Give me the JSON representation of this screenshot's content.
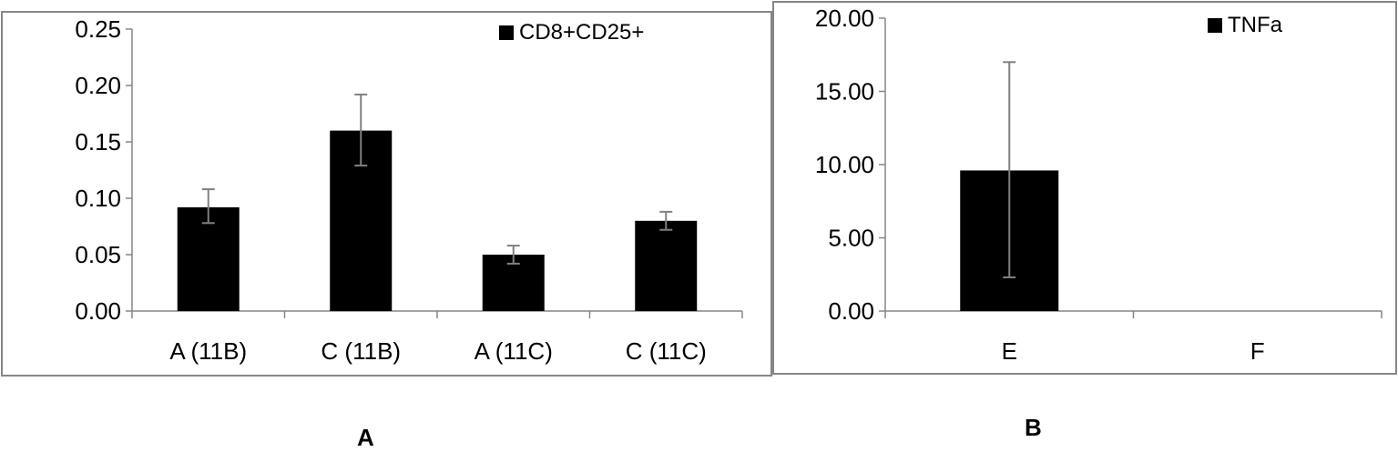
{
  "chart_data": [
    {
      "type": "bar",
      "panel_label": "A",
      "categories": [
        "A (11B)",
        "C (11B)",
        "A (11C)",
        "C (11C)"
      ],
      "series": [
        {
          "name": "CD8+CD25+",
          "values": [
            0.092,
            0.16,
            0.05,
            0.08
          ],
          "error_plus": [
            0.016,
            0.032,
            0.008,
            0.008
          ],
          "error_minus": [
            0.014,
            0.031,
            0.008,
            0.008
          ],
          "color": "#000000"
        }
      ],
      "ylim": [
        0,
        0.25
      ],
      "yticks": [
        "0.00",
        "0.05",
        "0.10",
        "0.15",
        "0.20",
        "0.25"
      ],
      "title": "",
      "xlabel": "",
      "ylabel": "",
      "grid": false,
      "legend": "top-right"
    },
    {
      "type": "bar",
      "panel_label": "B",
      "categories": [
        "E",
        "F"
      ],
      "series": [
        {
          "name": "TNFa",
          "values": [
            9.6,
            0
          ],
          "error_plus": [
            7.4,
            0
          ],
          "error_minus": [
            7.3,
            0
          ],
          "color": "#000000"
        }
      ],
      "ylim": [
        0,
        20
      ],
      "yticks": [
        "0.00",
        "5.00",
        "10.00",
        "15.00",
        "20.00"
      ],
      "title": "",
      "xlabel": "",
      "ylabel": "",
      "grid": false,
      "legend": "top-right"
    }
  ],
  "colors": {
    "bar": "#000000",
    "error_bar": "#808080",
    "axis": "#868686",
    "frame": "#868686"
  }
}
